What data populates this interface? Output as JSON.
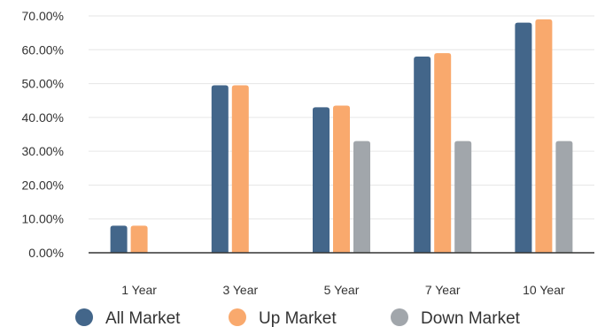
{
  "chart_data": {
    "type": "bar",
    "title": "",
    "xlabel": "",
    "ylabel": "",
    "categories": [
      "1 Year",
      "3 Year",
      "5 Year",
      "7 Year",
      "10 Year"
    ],
    "series": [
      {
        "name": "All Market",
        "color": "#43668a",
        "values": [
          8.0,
          49.5,
          43.0,
          58.0,
          68.0
        ]
      },
      {
        "name": "Up Market",
        "color": "#f9a96d",
        "values": [
          8.0,
          49.5,
          43.5,
          59.0,
          69.0
        ]
      },
      {
        "name": "Down Market",
        "color": "#a1a6ab",
        "values": [
          null,
          null,
          33.0,
          33.0,
          33.0
        ]
      }
    ],
    "ylim": [
      0,
      70
    ],
    "yticks": [
      "0.00%",
      "10.00%",
      "20.00%",
      "30.00%",
      "40.00%",
      "50.00%",
      "60.00%",
      "70.00%"
    ],
    "grid": true,
    "legend_position": "bottom"
  }
}
